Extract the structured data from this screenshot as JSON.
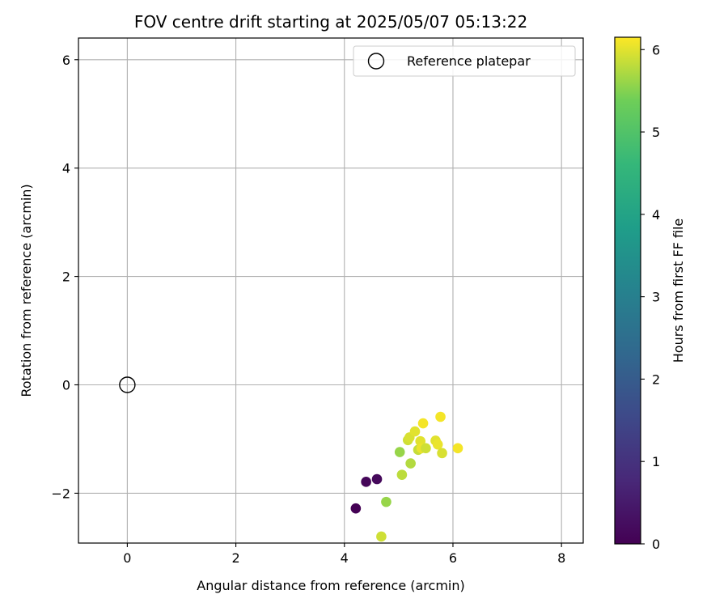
{
  "chart_data": {
    "type": "scatter",
    "title": "FOV centre drift starting at 2025/05/07 05:13:22",
    "xlabel": "Angular distance from reference (arcmin)",
    "ylabel": "Rotation from reference (arcmin)",
    "xlim": [
      -0.9,
      8.4
    ],
    "ylim": [
      -2.92,
      6.4
    ],
    "xticks": [
      0,
      2,
      4,
      6,
      8
    ],
    "yticks": [
      -2,
      0,
      2,
      4,
      6
    ],
    "xtick_labels": [
      "0",
      "2",
      "4",
      "6",
      "8"
    ],
    "ytick_labels": [
      "−2",
      "0",
      "2",
      "4",
      "6"
    ],
    "grid": true,
    "legend": {
      "placement": "top-right",
      "entries": [
        "Reference platepar"
      ]
    },
    "reference_point": {
      "x": 0,
      "y": 0
    },
    "colorbar": {
      "label": "Hours from first FF file",
      "range": [
        0,
        6.15
      ],
      "ticks": [
        0,
        1,
        2,
        3,
        4,
        5,
        6
      ],
      "tick_labels": [
        "0",
        "1",
        "2",
        "3",
        "4",
        "5",
        "6"
      ],
      "colormap": "viridis"
    },
    "points": [
      {
        "x": 4.21,
        "y": -2.28,
        "hours": 0.0
      },
      {
        "x": 4.4,
        "y": -1.79,
        "hours": 0.1
      },
      {
        "x": 4.6,
        "y": -1.74,
        "hours": 0.15
      },
      {
        "x": 4.68,
        "y": -2.8,
        "hours": 5.9
      },
      {
        "x": 4.77,
        "y": -2.16,
        "hours": 5.6
      },
      {
        "x": 5.02,
        "y": -1.24,
        "hours": 5.6
      },
      {
        "x": 5.06,
        "y": -1.66,
        "hours": 5.8
      },
      {
        "x": 5.17,
        "y": -1.02,
        "hours": 5.9
      },
      {
        "x": 5.2,
        "y": -0.97,
        "hours": 5.95
      },
      {
        "x": 5.22,
        "y": -1.45,
        "hours": 5.75
      },
      {
        "x": 5.3,
        "y": -0.86,
        "hours": 6.0
      },
      {
        "x": 5.36,
        "y": -1.2,
        "hours": 5.85
      },
      {
        "x": 5.4,
        "y": -1.04,
        "hours": 6.0
      },
      {
        "x": 5.42,
        "y": -1.17,
        "hours": 6.05
      },
      {
        "x": 5.45,
        "y": -0.71,
        "hours": 6.1
      },
      {
        "x": 5.5,
        "y": -1.17,
        "hours": 5.9
      },
      {
        "x": 5.68,
        "y": -1.03,
        "hours": 6.0
      },
      {
        "x": 5.72,
        "y": -1.1,
        "hours": 6.05
      },
      {
        "x": 5.77,
        "y": -0.59,
        "hours": 6.1
      },
      {
        "x": 5.8,
        "y": -1.26,
        "hours": 5.95
      },
      {
        "x": 6.09,
        "y": -1.17,
        "hours": 6.1
      }
    ]
  }
}
